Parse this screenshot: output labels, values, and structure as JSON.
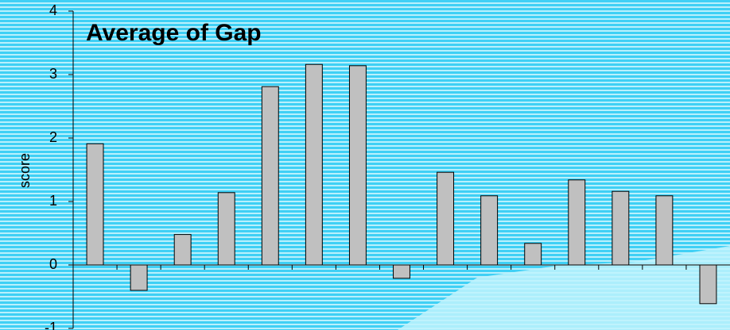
{
  "chart_data": {
    "type": "bar",
    "title": "Average of Gap",
    "y_label": "score",
    "categories": [
      null,
      null,
      null,
      null,
      null,
      null,
      null,
      null,
      null,
      null,
      null,
      null,
      null,
      null,
      null
    ],
    "values": [
      1.91,
      -0.4,
      0.48,
      1.14,
      2.81,
      3.16,
      3.14,
      -0.21,
      1.46,
      1.09,
      0.34,
      1.34,
      1.16,
      1.09,
      -0.61
    ],
    "color": "#c0c0c0",
    "ylim": [
      -1,
      4
    ],
    "yticks": [
      -1,
      0,
      1,
      2,
      3,
      4
    ]
  }
}
